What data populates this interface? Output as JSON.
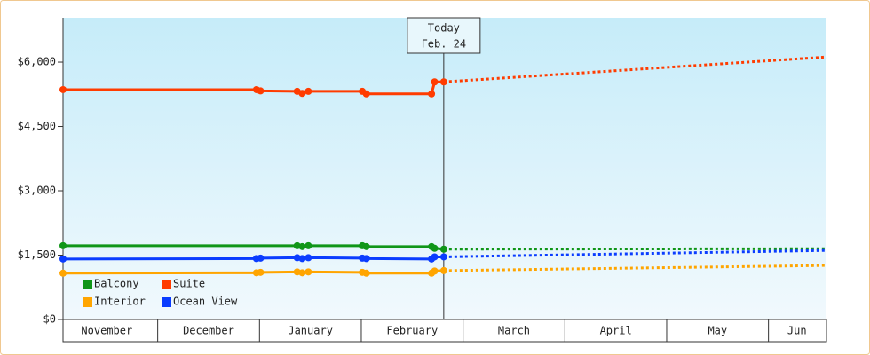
{
  "chart_data": {
    "type": "line",
    "xlim": [
      0.07,
      7.57
    ],
    "xticks": [
      {
        "value": 0.5,
        "label": "November"
      },
      {
        "value": 1.5,
        "label": "December"
      },
      {
        "value": 2.5,
        "label": "January"
      },
      {
        "value": 3.5,
        "label": "February"
      },
      {
        "value": 4.5,
        "label": "March"
      },
      {
        "value": 5.5,
        "label": "April"
      },
      {
        "value": 6.5,
        "label": "May"
      },
      {
        "value": 7.28,
        "label": "Jun"
      }
    ],
    "ylim": [
      0,
      7000
    ],
    "yticks": [
      {
        "value": 0,
        "label": "$0"
      },
      {
        "value": 1500,
        "label": "$1,500"
      },
      {
        "value": 3000,
        "label": "$3,000"
      },
      {
        "value": 4500,
        "label": "$4,500"
      },
      {
        "value": 6000,
        "label": "$6,000"
      }
    ],
    "legend": "lower left",
    "annotation": {
      "x": 3.81,
      "lines": [
        "Today",
        "Feb. 24"
      ]
    },
    "series": [
      {
        "name": "Balcony",
        "color": "#109618",
        "x": [
          0.07,
          2.37,
          2.42,
          2.48,
          3.01,
          3.05,
          3.69,
          3.72,
          3.81
        ],
        "values": [
          1720,
          1720,
          1700,
          1720,
          1720,
          1700,
          1700,
          1660,
          1640
        ],
        "forecast_x": [
          3.81,
          7.57
        ],
        "forecast_values": [
          1640,
          1650
        ]
      },
      {
        "name": "Suite",
        "color": "#ff3c00",
        "x": [
          0.07,
          1.97,
          2.01,
          2.37,
          2.42,
          2.48,
          3.01,
          3.05,
          3.69,
          3.72,
          3.81
        ],
        "values": [
          5360,
          5360,
          5330,
          5320,
          5270,
          5320,
          5320,
          5260,
          5260,
          5540,
          5540
        ],
        "forecast_x": [
          3.81,
          7.57
        ],
        "forecast_values": [
          5540,
          6120
        ]
      },
      {
        "name": "Interior",
        "color": "#ffa500",
        "x": [
          0.07,
          1.97,
          2.01,
          2.37,
          2.42,
          2.48,
          3.01,
          3.05,
          3.69,
          3.72,
          3.81
        ],
        "values": [
          1080,
          1090,
          1100,
          1110,
          1090,
          1110,
          1100,
          1080,
          1080,
          1130,
          1140
        ],
        "forecast_x": [
          3.81,
          7.57
        ],
        "forecast_values": [
          1140,
          1260
        ]
      },
      {
        "name": "Ocean View",
        "color": "#0a3cff",
        "x": [
          0.07,
          1.97,
          2.01,
          2.37,
          2.42,
          2.48,
          3.01,
          3.05,
          3.69,
          3.72,
          3.81
        ],
        "values": [
          1410,
          1420,
          1430,
          1440,
          1420,
          1440,
          1430,
          1420,
          1410,
          1460,
          1460
        ],
        "forecast_x": [
          3.81,
          7.57
        ],
        "forecast_values": [
          1460,
          1610
        ]
      }
    ]
  }
}
